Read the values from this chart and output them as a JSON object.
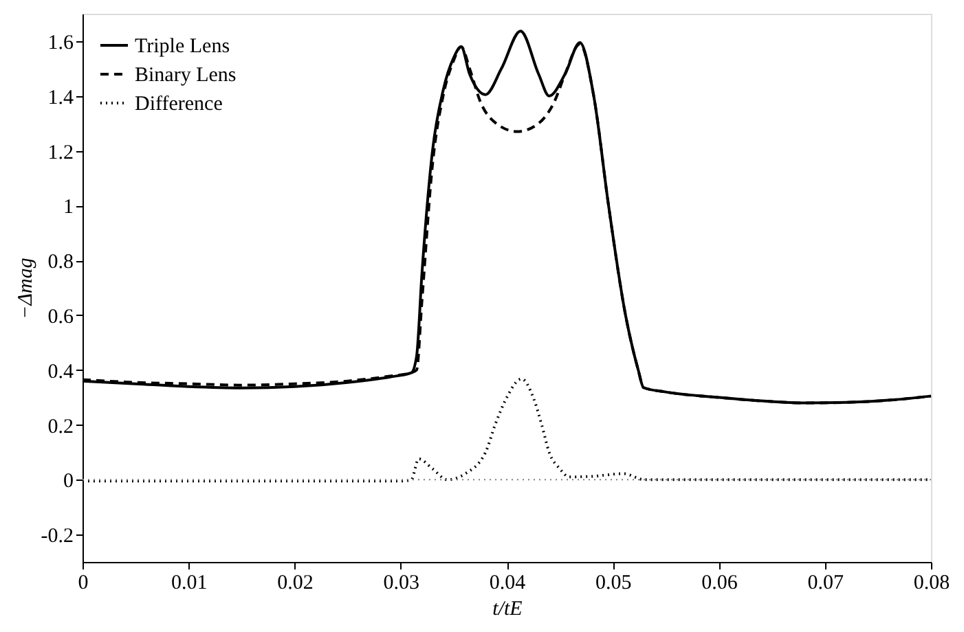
{
  "chart_data": {
    "type": "line",
    "xlabel": "t/tE",
    "ylabel": "−Δmag",
    "xlim": [
      0,
      0.08
    ],
    "ylim": [
      -0.3,
      1.7
    ],
    "xticks": [
      0,
      0.01,
      0.02,
      0.03,
      0.04,
      0.05,
      0.06,
      0.07,
      0.08
    ],
    "yticks": [
      -0.2,
      0,
      0.2,
      0.4,
      0.6,
      0.8,
      1,
      1.2,
      1.4,
      1.6
    ],
    "grid": false,
    "legend": "top left",
    "ref_lines": [
      {
        "axis": "y",
        "value": 0,
        "color": "#808080",
        "line_style": "dotted"
      }
    ],
    "series": [
      {
        "name": "Triple Lens",
        "color": "#000000",
        "line_style": "solid",
        "x": [
          0,
          0.005,
          0.01,
          0.015,
          0.02,
          0.025,
          0.029,
          0.031,
          0.0315,
          0.032,
          0.033,
          0.034,
          0.035,
          0.0357,
          0.0365,
          0.038,
          0.0395,
          0.0413,
          0.043,
          0.044,
          0.0455,
          0.0469,
          0.0482,
          0.0496,
          0.0512,
          0.0524,
          0.0529,
          0.055,
          0.06,
          0.065,
          0.0682,
          0.072,
          0.076,
          0.08
        ],
        "values": [
          0.36,
          0.35,
          0.34,
          0.335,
          0.34,
          0.355,
          0.375,
          0.39,
          0.45,
          0.75,
          1.2,
          1.42,
          1.54,
          1.58,
          1.48,
          1.405,
          1.5,
          1.637,
          1.48,
          1.4,
          1.48,
          1.595,
          1.4,
          1.0,
          0.6,
          0.4,
          0.336,
          0.32,
          0.3,
          0.285,
          0.28,
          0.282,
          0.29,
          0.305
        ]
      },
      {
        "name": "Binary Lens",
        "color": "#000000",
        "line_style": "dashed",
        "x": [
          0,
          0.005,
          0.01,
          0.015,
          0.02,
          0.025,
          0.029,
          0.031,
          0.0315,
          0.032,
          0.033,
          0.034,
          0.035,
          0.0357,
          0.0365,
          0.0375,
          0.039,
          0.041,
          0.043,
          0.0445,
          0.0455,
          0.0469,
          0.0482,
          0.0496,
          0.0512,
          0.0524,
          0.0529,
          0.055,
          0.06,
          0.065,
          0.0682,
          0.072,
          0.076,
          0.08
        ],
        "values": [
          0.365,
          0.355,
          0.35,
          0.345,
          0.35,
          0.36,
          0.378,
          0.39,
          0.4,
          0.65,
          1.15,
          1.4,
          1.53,
          1.58,
          1.5,
          1.38,
          1.3,
          1.27,
          1.3,
          1.38,
          1.48,
          1.59,
          1.4,
          1.0,
          0.6,
          0.4,
          0.336,
          0.32,
          0.3,
          0.285,
          0.28,
          0.282,
          0.29,
          0.305
        ]
      },
      {
        "name": "Difference",
        "color": "#000000",
        "line_style": "dotted",
        "x": [
          0,
          0.01,
          0.02,
          0.03,
          0.031,
          0.0317,
          0.033,
          0.0344,
          0.036,
          0.038,
          0.0389,
          0.04,
          0.0414,
          0.0425,
          0.0433,
          0.044,
          0.045,
          0.0459,
          0.048,
          0.051,
          0.053,
          0.06,
          0.07,
          0.08
        ],
        "values": [
          -0.005,
          -0.005,
          -0.005,
          -0.005,
          0,
          0.076,
          0.04,
          0,
          0.02,
          0.1,
          0.2,
          0.3,
          0.368,
          0.3,
          0.2,
          0.1,
          0.04,
          0.01,
          0.012,
          0.022,
          0,
          0,
          0,
          0
        ]
      }
    ]
  }
}
